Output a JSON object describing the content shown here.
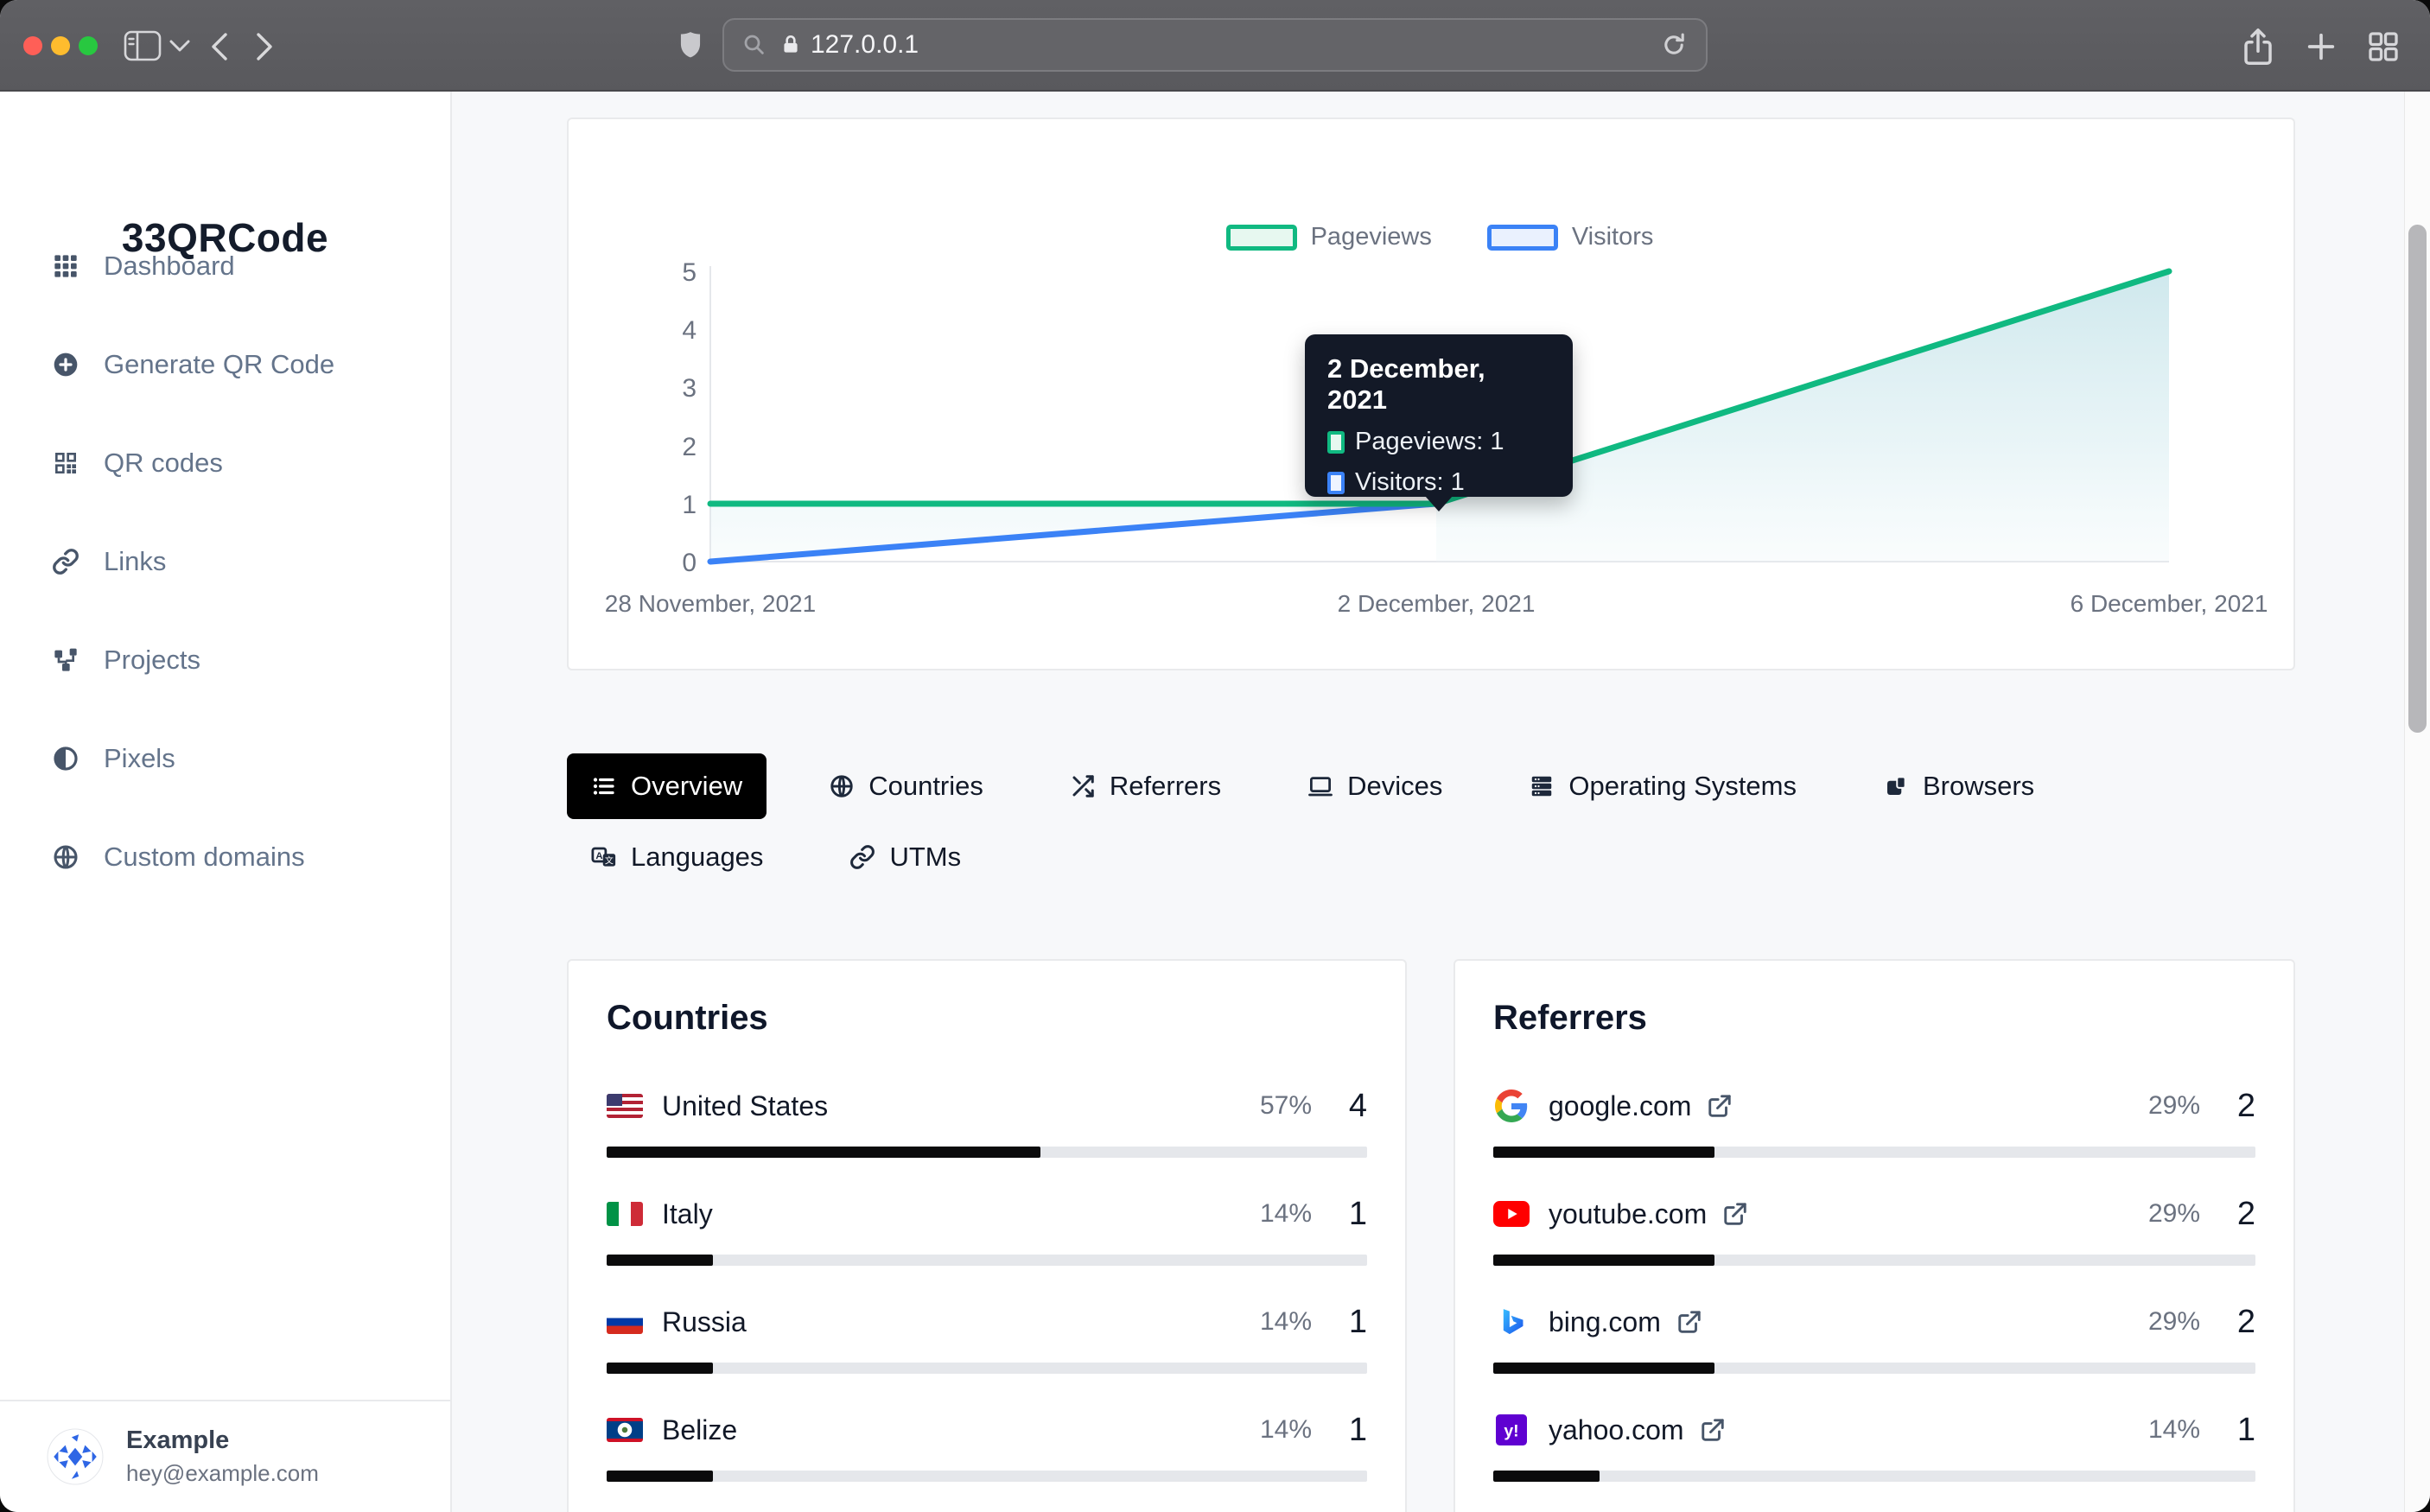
{
  "browser": {
    "url": "127.0.0.1"
  },
  "sidebar": {
    "title": "33QRCode",
    "items": [
      {
        "label": "Dashboard",
        "icon": "dashboard-grid-icon"
      },
      {
        "label": "Generate QR Code",
        "icon": "plus-circle-icon"
      },
      {
        "label": "QR codes",
        "icon": "qr-code-icon"
      },
      {
        "label": "Links",
        "icon": "link-icon"
      },
      {
        "label": "Projects",
        "icon": "projects-icon"
      },
      {
        "label": "Pixels",
        "icon": "pixels-icon"
      },
      {
        "label": "Custom domains",
        "icon": "globe-icon"
      }
    ],
    "user": {
      "name": "Example",
      "email": "hey@example.com"
    }
  },
  "chart": {
    "legend": [
      {
        "label": "Pageviews",
        "color": "#10b981"
      },
      {
        "label": "Visitors",
        "color": "#3b82f6"
      }
    ],
    "y_ticks": [
      "5",
      "4",
      "3",
      "2",
      "1",
      "0"
    ],
    "x_labels": [
      "28 November, 2021",
      "2 December, 2021",
      "6 December, 2021"
    ],
    "tooltip": {
      "title": "2 December, 2021",
      "rows": [
        {
          "label": "Pageviews: 1",
          "color": "#10b981"
        },
        {
          "label": "Visitors: 1",
          "color": "#3b82f6"
        }
      ]
    }
  },
  "chart_data": {
    "type": "area",
    "x": [
      "28 November, 2021",
      "2 December, 2021",
      "6 December, 2021"
    ],
    "series": [
      {
        "name": "Pageviews",
        "color": "#10b981",
        "values": [
          1,
          1,
          5
        ]
      },
      {
        "name": "Visitors",
        "color": "#3b82f6",
        "values": [
          0,
          1,
          5
        ]
      }
    ],
    "ylim": [
      0,
      5
    ],
    "y_ticks": [
      0,
      1,
      2,
      3,
      4,
      5
    ],
    "legend_position": "top",
    "grid": false,
    "tooltip_point": {
      "x": "2 December, 2021",
      "Pageviews": 1,
      "Visitors": 1
    }
  },
  "tabs": {
    "items": [
      {
        "label": "Overview",
        "active": true
      },
      {
        "label": "Countries",
        "active": false
      },
      {
        "label": "Referrers",
        "active": false
      },
      {
        "label": "Devices",
        "active": false
      },
      {
        "label": "Operating Systems",
        "active": false
      },
      {
        "label": "Browsers",
        "active": false
      },
      {
        "label": "Languages",
        "active": false
      },
      {
        "label": "UTMs",
        "active": false
      }
    ]
  },
  "countries": {
    "title": "Countries",
    "rows": [
      {
        "flag": "united-states",
        "name": "United States",
        "percent": "57%",
        "count": "4",
        "bar": 57
      },
      {
        "flag": "italy",
        "name": "Italy",
        "percent": "14%",
        "count": "1",
        "bar": 14
      },
      {
        "flag": "russia",
        "name": "Russia",
        "percent": "14%",
        "count": "1",
        "bar": 14
      },
      {
        "flag": "belize",
        "name": "Belize",
        "percent": "14%",
        "count": "1",
        "bar": 14
      }
    ]
  },
  "referrers": {
    "title": "Referrers",
    "rows": [
      {
        "logo": "google",
        "domain": "google.com",
        "percent": "29%",
        "count": "2",
        "bar": 29
      },
      {
        "logo": "youtube",
        "domain": "youtube.com",
        "percent": "29%",
        "count": "2",
        "bar": 29
      },
      {
        "logo": "bing",
        "domain": "bing.com",
        "percent": "29%",
        "count": "2",
        "bar": 29
      },
      {
        "logo": "yahoo",
        "domain": "yahoo.com",
        "percent": "14%",
        "count": "1",
        "bar": 14
      }
    ]
  }
}
